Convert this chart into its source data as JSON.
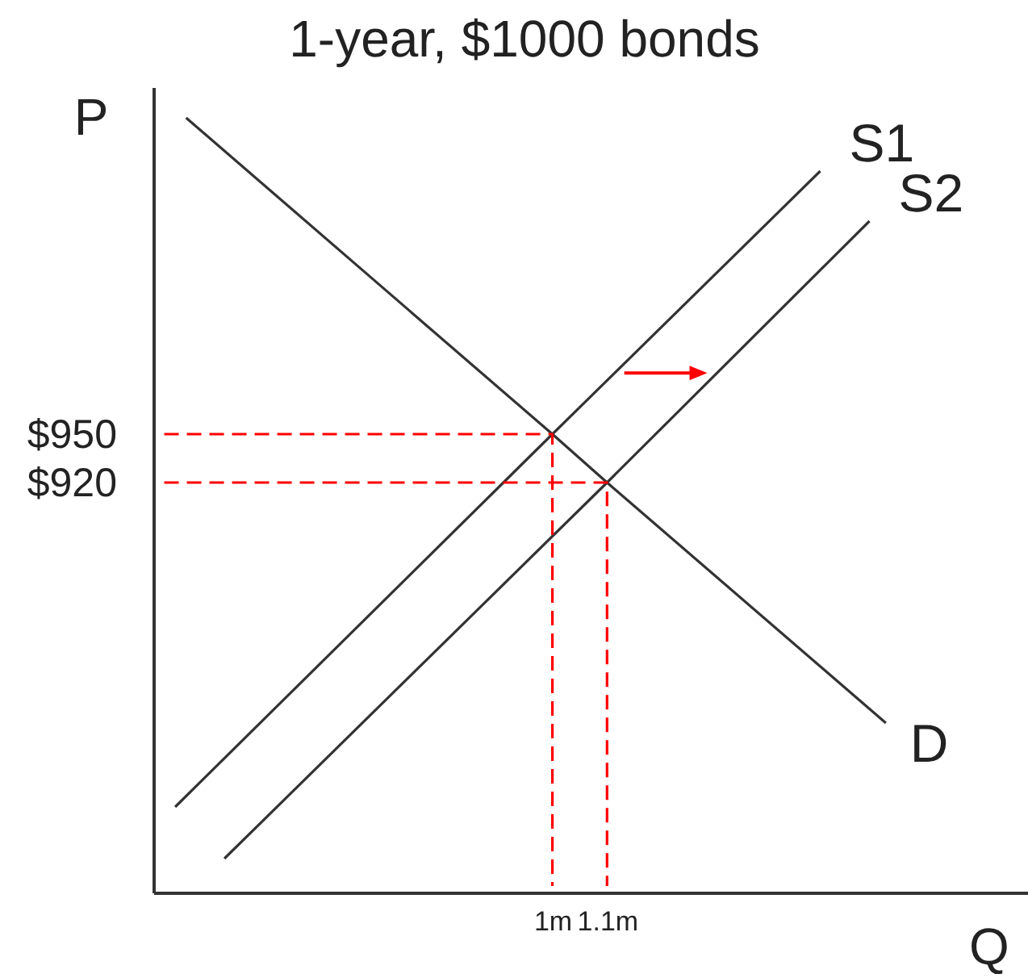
{
  "chart_data": {
    "type": "line",
    "title": "1-year, $1000 bonds",
    "xlabel": "Q",
    "ylabel": "P",
    "xlim": [
      0.27,
      1.87
    ],
    "ylim": [
      666,
      1165
    ],
    "xticks": [
      {
        "value": 1,
        "label": "1m"
      },
      {
        "value": 1.1,
        "label": "1.1m"
      }
    ],
    "yticks": [
      {
        "value": 950,
        "label": "$950"
      },
      {
        "value": 920,
        "label": "$920"
      }
    ],
    "series": [
      {
        "name": "S1",
        "color": "#333333",
        "x": [
          0.31,
          1,
          1.49
        ],
        "values": [
          719,
          950,
          1113
        ]
      },
      {
        "name": "S2",
        "color": "#333333",
        "x": [
          0.4,
          1.1,
          1.58
        ],
        "values": [
          687,
          920,
          1082
        ]
      },
      {
        "name": "D",
        "color": "#333333",
        "x": [
          0.33,
          1,
          1.1,
          1.61
        ],
        "values": [
          1146,
          950,
          920,
          771
        ]
      },
      {
        "color": "#ff0000",
        "line_style": "dashed",
        "x": [
          0.29,
          1,
          1
        ],
        "values": [
          950,
          950,
          670
        ]
      },
      {
        "color": "#ff0000",
        "line_style": "dashed",
        "x": [
          0.29,
          1.1,
          1.1
        ],
        "values": [
          920,
          920,
          670
        ]
      }
    ]
  }
}
